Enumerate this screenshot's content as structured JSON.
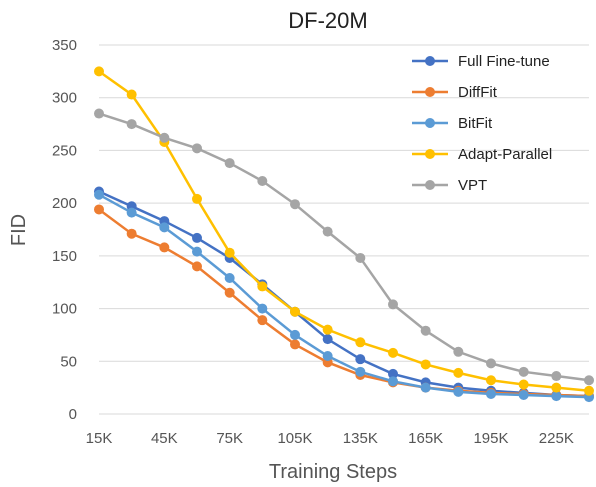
{
  "chart_data": {
    "type": "line",
    "title": "DF-20M",
    "xlabel": "Training Steps",
    "ylabel": "FID",
    "x": [
      15000,
      30000,
      45000,
      60000,
      75000,
      90000,
      105000,
      120000,
      135000,
      150000,
      165000,
      180000,
      195000,
      210000,
      225000,
      240000
    ],
    "xticks": [
      15000,
      45000,
      75000,
      105000,
      135000,
      165000,
      195000,
      225000
    ],
    "xtick_labels": [
      "15K",
      "45K",
      "75K",
      "105K",
      "135K",
      "165K",
      "195K",
      "225K"
    ],
    "xlim": [
      15000,
      240000
    ],
    "ylim": [
      0,
      350
    ],
    "yticks": [
      0,
      50,
      100,
      150,
      200,
      250,
      300,
      350
    ],
    "ytick_labels": [
      "0",
      "50",
      "100",
      "150",
      "200",
      "250",
      "300",
      "350"
    ],
    "grid": "horizontal",
    "legend_position": "top-right",
    "series": [
      {
        "name": "Full Fine-tune",
        "color": "#4472C4",
        "values": [
          211,
          197,
          183,
          167,
          148,
          123,
          97,
          71,
          52,
          38,
          30,
          25,
          22,
          20,
          18,
          17
        ]
      },
      {
        "name": "DiffFit",
        "color": "#ED7D31",
        "values": [
          194,
          171,
          158,
          140,
          115,
          89,
          66,
          49,
          37,
          30,
          25,
          22,
          20,
          19,
          18,
          17
        ]
      },
      {
        "name": "BitFit",
        "color": "#5B9BD5",
        "values": [
          208,
          191,
          177,
          154,
          129,
          100,
          75,
          55,
          40,
          31,
          25,
          21,
          19,
          18,
          17,
          16
        ]
      },
      {
        "name": "Adapt-Parallel",
        "color": "#FFC000",
        "values": [
          325,
          303,
          258,
          204,
          153,
          121,
          97,
          80,
          68,
          58,
          47,
          39,
          32,
          28,
          25,
          22
        ]
      },
      {
        "name": "VPT",
        "color": "#A5A5A5",
        "values": [
          285,
          275,
          262,
          252,
          238,
          221,
          199,
          173,
          148,
          104,
          79,
          59,
          48,
          40,
          36,
          32
        ]
      }
    ]
  }
}
